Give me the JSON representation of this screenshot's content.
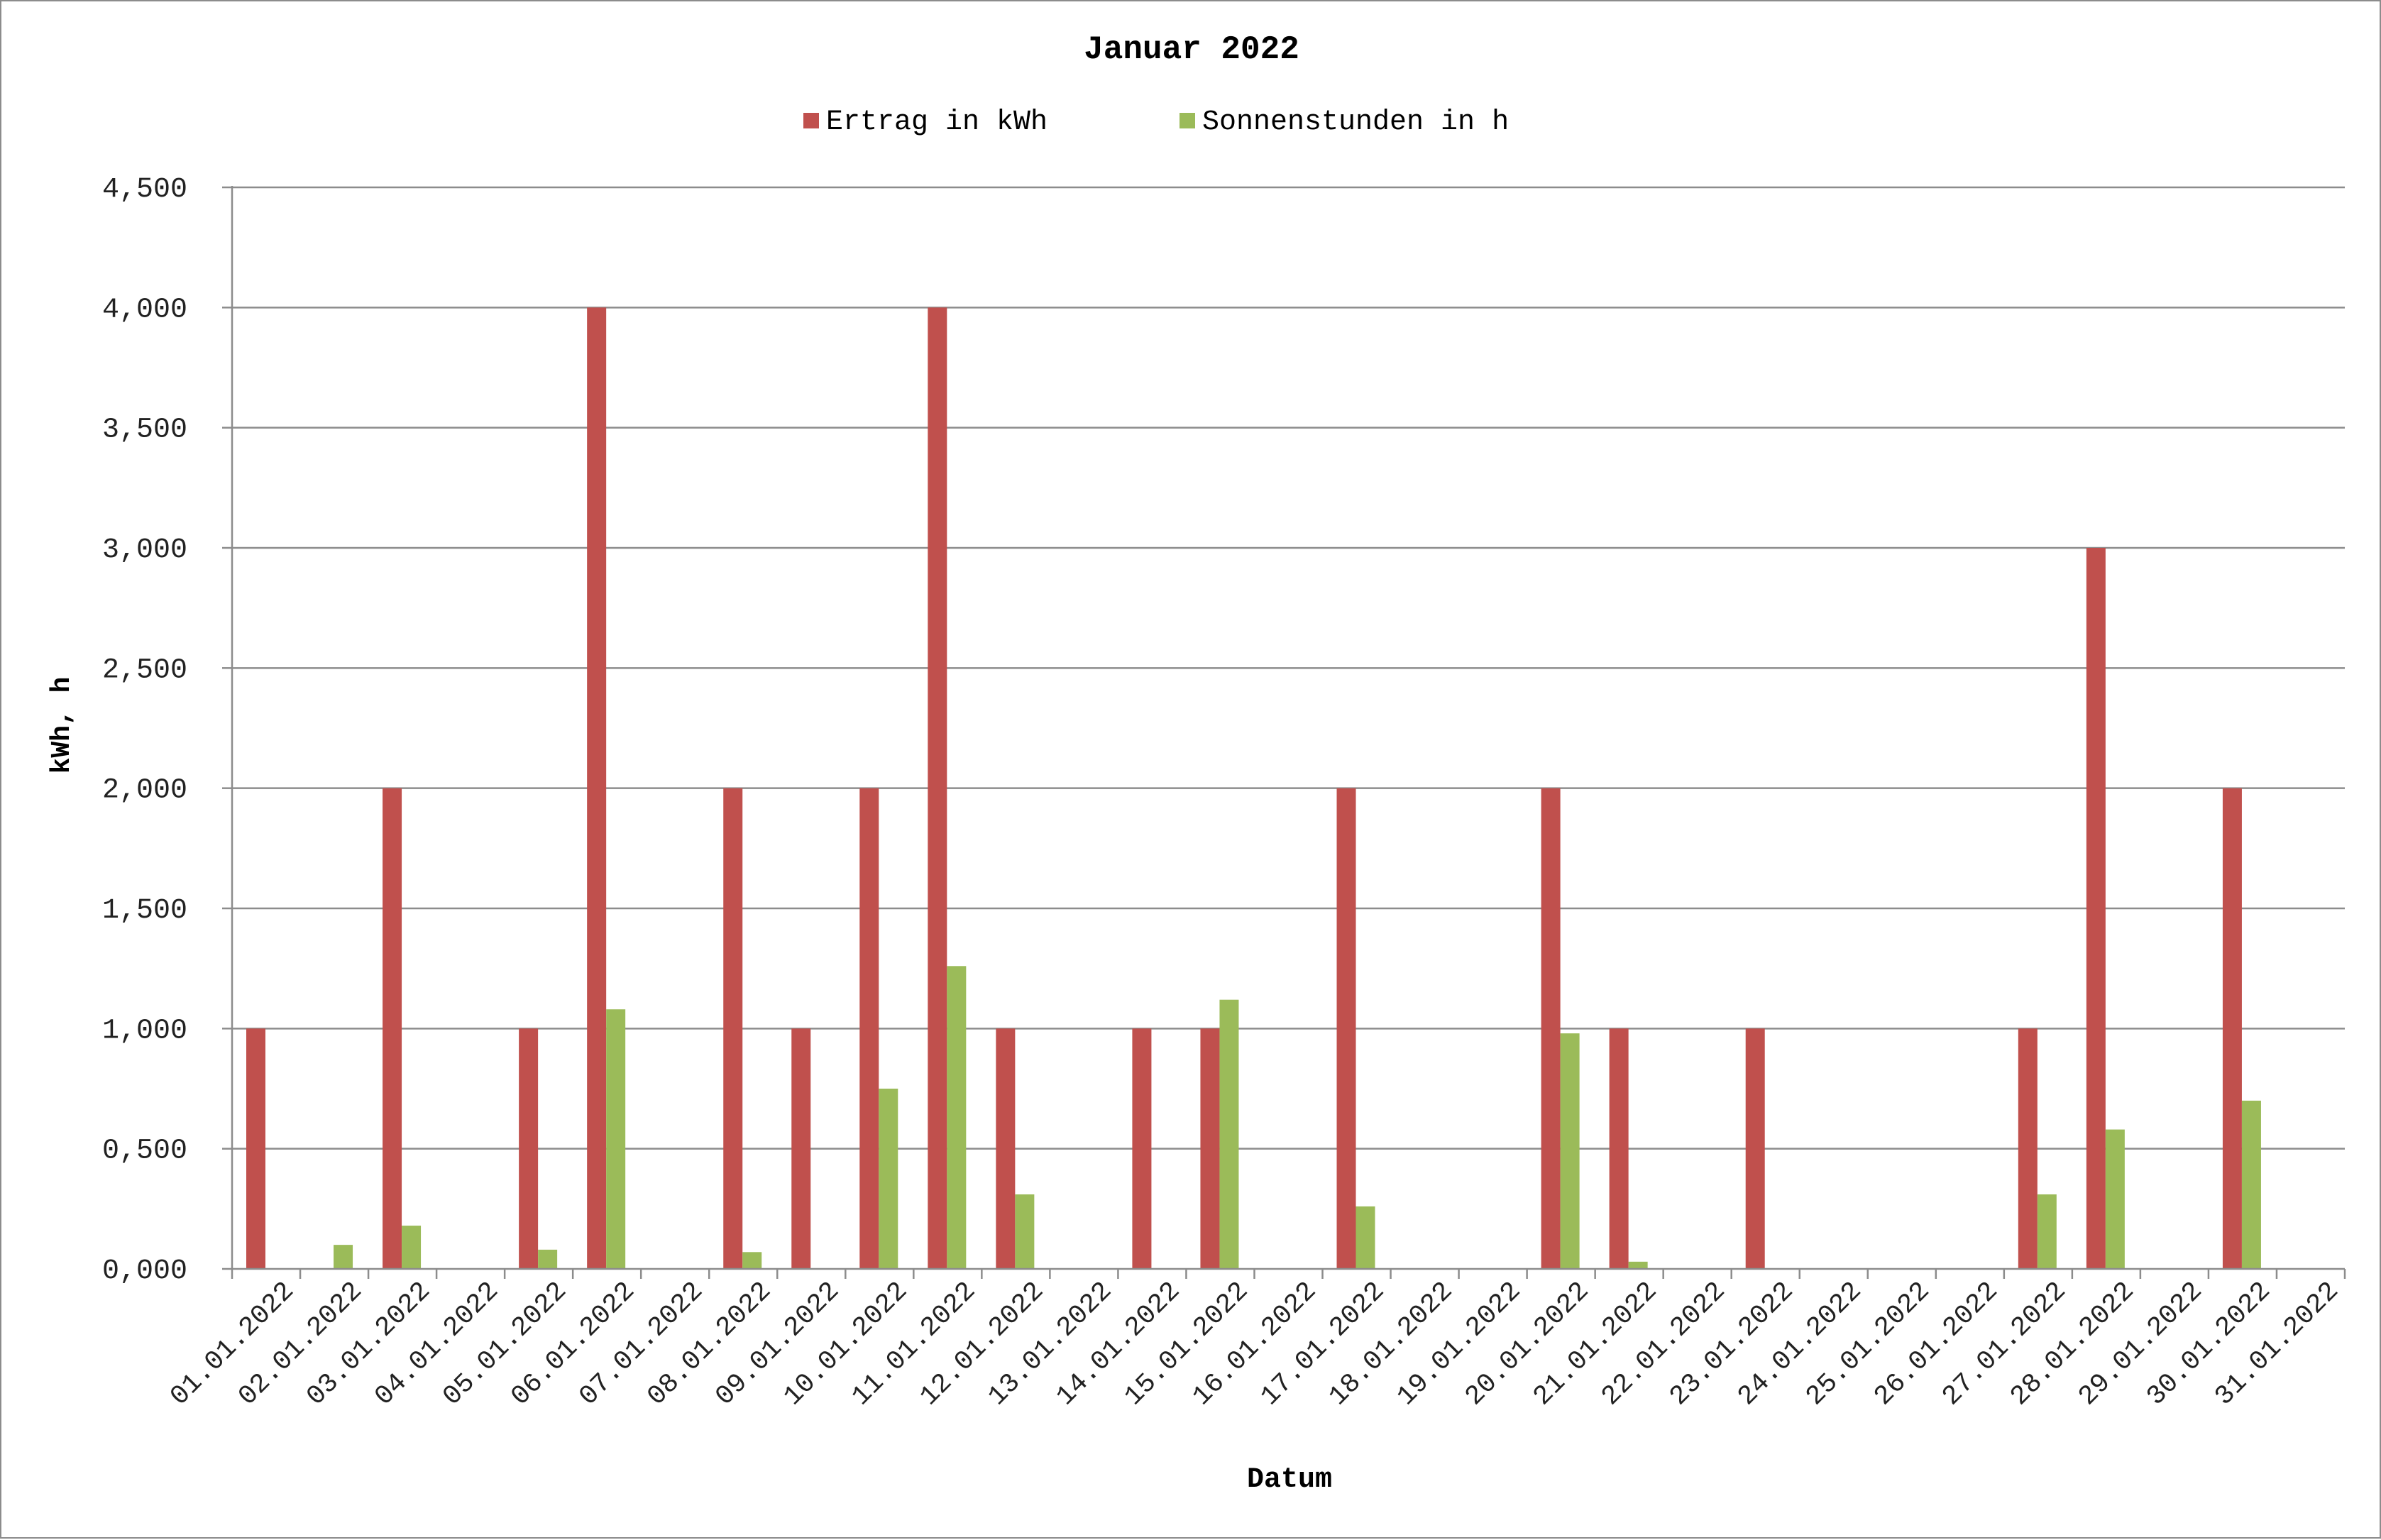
{
  "chart_data": {
    "type": "bar",
    "title": "Januar 2022",
    "xlabel": "Datum",
    "ylabel": "kWh, h",
    "ylim": [
      0,
      4.5
    ],
    "yticks": [
      "0,000",
      "0,500",
      "1,000",
      "1,500",
      "2,000",
      "2,500",
      "3,000",
      "3,500",
      "4,000",
      "4,500"
    ],
    "grid": true,
    "legend_position": "top",
    "categories": [
      "01.01.2022",
      "02.01.2022",
      "03.01.2022",
      "04.01.2022",
      "05.01.2022",
      "06.01.2022",
      "07.01.2022",
      "08.01.2022",
      "09.01.2022",
      "10.01.2022",
      "11.01.2022",
      "12.01.2022",
      "13.01.2022",
      "14.01.2022",
      "15.01.2022",
      "16.01.2022",
      "17.01.2022",
      "18.01.2022",
      "19.01.2022",
      "20.01.2022",
      "21.01.2022",
      "22.01.2022",
      "23.01.2022",
      "24.01.2022",
      "25.01.2022",
      "26.01.2022",
      "27.01.2022",
      "28.01.2022",
      "29.01.2022",
      "30.01.2022",
      "31.01.2022"
    ],
    "series": [
      {
        "name": "Ertrag in kWh",
        "color": "#c0504d",
        "values": [
          1,
          0,
          2,
          0,
          1,
          4,
          0,
          2,
          1,
          2,
          4,
          1,
          0,
          1,
          1,
          0,
          2,
          0,
          0,
          2,
          1,
          0,
          1,
          0,
          0,
          0,
          1,
          3,
          0,
          2,
          0
        ]
      },
      {
        "name": "Sonnenstunden in h",
        "color": "#9bbb59",
        "values": [
          0,
          0.1,
          0.18,
          0,
          0.08,
          1.08,
          0,
          0.07,
          0,
          0.75,
          1.26,
          0.31,
          0,
          0,
          1.12,
          0,
          0.26,
          0,
          0,
          0.98,
          0.03,
          0,
          0,
          0,
          0,
          0,
          0.31,
          0.58,
          0,
          0.7,
          0
        ]
      }
    ]
  }
}
